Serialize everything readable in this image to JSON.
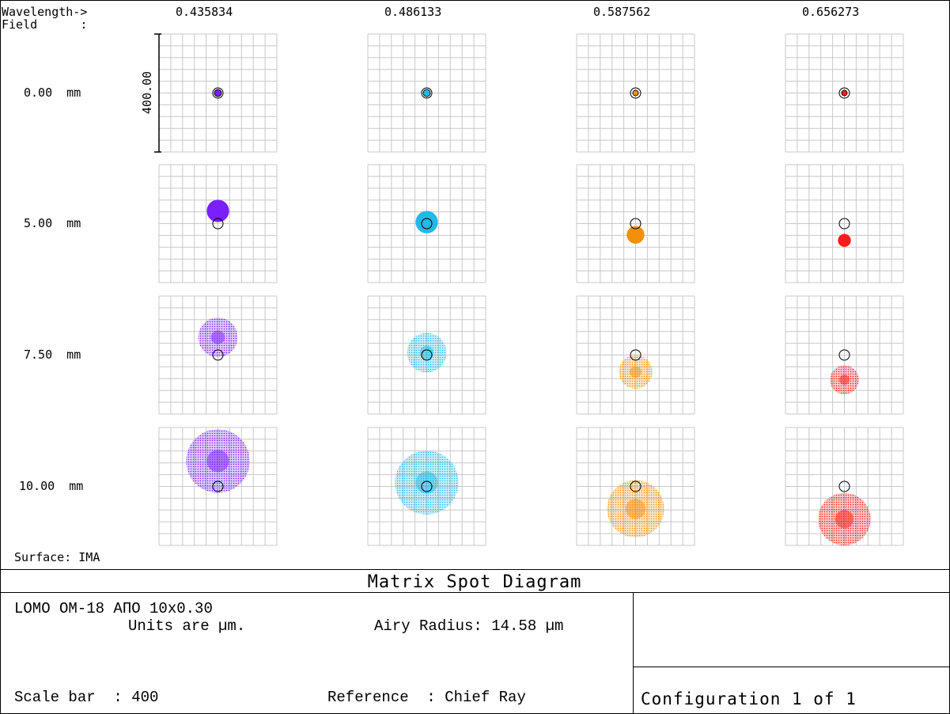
{
  "header": {
    "wavelength_label": "Wavelength->",
    "field_label": "Field      :"
  },
  "surface_label": "Surface: IMA",
  "plot_title": "Matrix Spot Diagram",
  "info": {
    "lens_name": "LOMO OM-18 АПО 10х0.30",
    "units": "Units are µm.",
    "airy_radius": "Airy Radius: 14.58 µm",
    "scale_bar": "Scale bar  : 400",
    "reference": "Reference  : Chief Ray",
    "configuration": "Configuration 1 of 1"
  },
  "chart_data": {
    "type": "scatter",
    "title": "Matrix Spot Diagram",
    "scale_bar_label": "400.00",
    "scale_bar_um": 400,
    "cell_extent_um": 400,
    "wavelengths": [
      "0.435834",
      "0.486133",
      "0.587562",
      "0.656273"
    ],
    "wavelength_colors": [
      "#7a1fff",
      "#22b8e8",
      "#f2900a",
      "#ff1a1a"
    ],
    "fields": [
      "0.00  mm",
      "5.00  mm",
      "7.50  mm",
      "10.00  mm"
    ],
    "grid_on": true,
    "airy_radius_um": 14.58,
    "spots": [
      [
        {
          "dx_um": 0,
          "dy_um": 0,
          "radius_um": 12,
          "style": "solid"
        },
        {
          "dx_um": 0,
          "dy_um": 0,
          "radius_um": 12,
          "style": "solid"
        },
        {
          "dx_um": 0,
          "dy_um": 0,
          "radius_um": 5,
          "style": "solid"
        },
        {
          "dx_um": 0,
          "dy_um": 0,
          "radius_um": 6,
          "style": "solid"
        }
      ],
      [
        {
          "dx_um": 0,
          "dy_um": 43,
          "radius_um": 38,
          "style": "solid"
        },
        {
          "dx_um": 0,
          "dy_um": 5,
          "radius_um": 38,
          "style": "solid"
        },
        {
          "dx_um": 0,
          "dy_um": -38,
          "radius_um": 30,
          "style": "solid"
        },
        {
          "dx_um": 0,
          "dy_um": -57,
          "radius_um": 22,
          "style": "solid"
        }
      ],
      [
        {
          "dx_um": 0,
          "dy_um": 60,
          "radius_um": 67,
          "style": "dotted"
        },
        {
          "dx_um": 0,
          "dy_um": 8,
          "radius_um": 67,
          "style": "dotted"
        },
        {
          "dx_um": 0,
          "dy_um": -57,
          "radius_um": 57,
          "style": "dotted"
        },
        {
          "dx_um": 0,
          "dy_um": -84,
          "radius_um": 49,
          "style": "dotted"
        }
      ],
      [
        {
          "dx_um": 0,
          "dy_um": 86,
          "radius_um": 108,
          "style": "dotted"
        },
        {
          "dx_um": 0,
          "dy_um": 13,
          "radius_um": 108,
          "style": "dotted"
        },
        {
          "dx_um": 0,
          "dy_um": -76,
          "radius_um": 97,
          "style": "dotted"
        },
        {
          "dx_um": 0,
          "dy_um": -111,
          "radius_um": 89,
          "style": "dotted"
        }
      ]
    ]
  }
}
